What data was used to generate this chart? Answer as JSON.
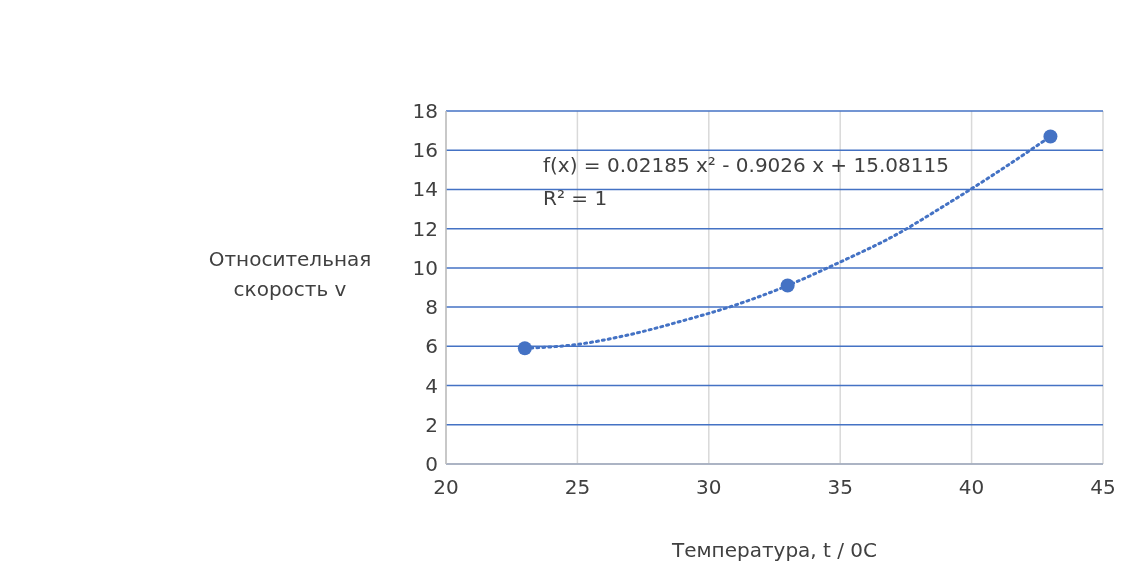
{
  "chart_data": {
    "type": "scatter",
    "xlabel": "Температура, t / 0C",
    "ylabel": "Относительная\nскорость v",
    "xlim": [
      20,
      45
    ],
    "xticks": [
      20,
      25,
      30,
      35,
      40,
      45
    ],
    "ylim": [
      0,
      18
    ],
    "yticks": [
      0,
      2,
      4,
      6,
      8,
      10,
      12,
      14,
      16,
      18
    ],
    "grid": true,
    "marker": "circle",
    "series": [
      {
        "type": "scatter",
        "color": "#4472c4",
        "x": [
          23,
          33,
          43
        ],
        "values": [
          5.9,
          9.1,
          16.7
        ]
      },
      {
        "type": "line",
        "color": "#4472c4",
        "line_style": "dotted",
        "marker": "none",
        "x": [
          23,
          25,
          27,
          29,
          31,
          33,
          35,
          37,
          39,
          41,
          43
        ],
        "values": [
          5.9,
          6.1,
          6.6,
          7.3,
          8.1,
          9.1,
          10.3,
          11.6,
          13.2,
          14.9,
          16.7
        ]
      }
    ],
    "annotations": [
      "f(x) = 0.02185 x² - 0.9026 x + 15.08115",
      "R² = 1"
    ]
  }
}
